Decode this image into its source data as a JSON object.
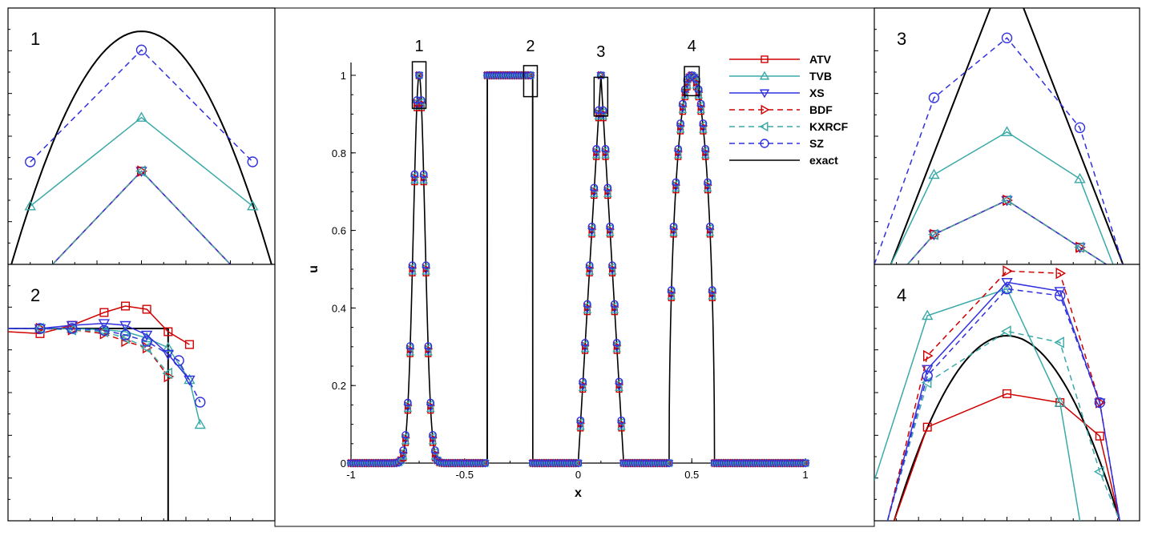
{
  "figure": {
    "panel_labels": [
      "1",
      "2",
      "3",
      "4"
    ],
    "box_labels": [
      "1",
      "2",
      "3",
      "4"
    ]
  },
  "chart_data": {
    "type": "line",
    "xlabel": "x",
    "ylabel": "u",
    "xlim": [
      -1,
      1
    ],
    "ylim": [
      0,
      1
    ],
    "x_ticks": [
      -1,
      -0.5,
      0,
      0.5,
      1
    ],
    "x_tick_labels": [
      "-1",
      "-0.5",
      "0",
      "0.5",
      "1"
    ],
    "y_ticks": [
      0,
      0.2,
      0.4,
      0.6,
      0.8,
      1
    ],
    "y_tick_labels": [
      "0",
      "0.2",
      "0.4",
      "0.6",
      "0.8",
      "1"
    ],
    "grid": false,
    "legend_position": "top-right",
    "zoom_regions": [
      {
        "label": "1",
        "x": [
          -0.73,
          -0.67
        ],
        "y": [
          0.92,
          1.04
        ]
      },
      {
        "label": "2",
        "x": [
          -0.24,
          -0.18
        ],
        "y": [
          0.96,
          1.04
        ]
      },
      {
        "label": "3",
        "x": [
          0.07,
          0.13
        ],
        "y": [
          0.91,
          0.98
        ]
      },
      {
        "label": "4",
        "x": [
          0.46,
          0.54
        ],
        "y": [
          0.96,
          1.03
        ]
      }
    ],
    "series": [
      {
        "name": "ATV",
        "color": "#d00000",
        "marker": "square",
        "dash": false
      },
      {
        "name": "TVB",
        "color": "#3aaaa8",
        "marker": "triangle-up",
        "dash": false
      },
      {
        "name": "XS",
        "color": "#3030e0",
        "marker": "triangle-down",
        "dash": false
      },
      {
        "name": "BDF",
        "color": "#d00000",
        "marker": "triangle-right",
        "dash": true
      },
      {
        "name": "KXRCF",
        "color": "#3aaaa8",
        "marker": "triangle-left",
        "dash": true
      },
      {
        "name": "SZ",
        "color": "#3030e0",
        "marker": "circle",
        "dash": true
      },
      {
        "name": "exact",
        "color": "#000000",
        "marker": "none",
        "dash": false
      }
    ],
    "exact_solution": "Gaussian pulse at x=-0.7, square wave on [-0.4,-0.2], triangle at x=0.1, semi-ellipse at x=0.5",
    "insets": [
      {
        "label": "1",
        "xlim": [
          -0.712,
          -0.688
        ],
        "ylim": [
          0.9,
          1.01
        ],
        "series": {
          "exact": {
            "x": [
              -0.712,
              -0.708,
              -0.704,
              -0.702,
              -0.7,
              -0.698,
              -0.696,
              -0.692,
              -0.688
            ],
            "y": [
              0.9,
              0.945,
              0.985,
              0.998,
              1.0,
              0.998,
              0.985,
              0.945,
              0.9
            ]
          },
          "SZ": {
            "x": [
              -0.71,
              -0.7,
              -0.69
            ],
            "y": [
              0.944,
              0.992,
              0.944
            ]
          },
          "TVB": {
            "x": [
              -0.71,
              -0.7,
              -0.69
            ],
            "y": [
              0.925,
              0.963,
              0.925
            ]
          },
          "ATV": {
            "x": [
              -0.708,
              -0.7,
              -0.692
            ],
            "y": [
              0.9,
              0.94,
              0.9
            ]
          },
          "XS": {
            "x": [
              -0.708,
              -0.7,
              -0.692
            ],
            "y": [
              0.9,
              0.94,
              0.9
            ]
          },
          "BDF": {
            "x": [
              -0.708,
              -0.7,
              -0.692
            ],
            "y": [
              0.9,
              0.94,
              0.9
            ]
          },
          "KXRCF": {
            "x": [
              -0.708,
              -0.7,
              -0.692
            ],
            "y": [
              0.9,
              0.94,
              0.9
            ]
          }
        }
      },
      {
        "label": "2",
        "xlim": [
          -0.215,
          -0.19
        ],
        "ylim": [
          0.97,
          1.01
        ],
        "series": {
          "exact": {
            "x": [
              -0.215,
              -0.2,
              -0.2
            ],
            "y": [
              1.0,
              1.0,
              0.97
            ]
          },
          "ATV": {
            "x": [
              -0.215,
              -0.212,
              -0.209,
              -0.206,
              -0.204,
              -0.202,
              -0.2,
              -0.198
            ],
            "y": [
              0.9995,
              0.9992,
              1.0005,
              1.0025,
              1.0035,
              1.003,
              0.9995,
              0.9975
            ]
          },
          "TVB": {
            "x": [
              -0.215,
              -0.212,
              -0.209,
              -0.206,
              -0.204,
              -0.202,
              -0.2,
              -0.198,
              -0.197
            ],
            "y": [
              1.0,
              1.0,
              1.0,
              0.9998,
              0.9995,
              0.9985,
              0.997,
              0.992,
              0.985
            ]
          },
          "XS": {
            "x": [
              -0.215,
              -0.212,
              -0.209,
              -0.206,
              -0.204,
              -0.202,
              -0.2,
              -0.198
            ],
            "y": [
              1.0,
              1.0,
              1.0005,
              1.0008,
              1.0005,
              0.999,
              0.996,
              0.992
            ]
          },
          "BDF": {
            "x": [
              -0.215,
              -0.212,
              -0.209,
              -0.206,
              -0.204,
              -0.202,
              -0.2
            ],
            "y": [
              1.0,
              1.0,
              0.9998,
              0.9992,
              0.998,
              0.997,
              0.9925
            ]
          },
          "KXRCF": {
            "x": [
              -0.215,
              -0.212,
              -0.209,
              -0.206,
              -0.204,
              -0.202,
              -0.2
            ],
            "y": [
              1.0,
              1.0,
              0.9998,
              0.9995,
              0.9985,
              0.997,
              0.993
            ]
          },
          "SZ": {
            "x": [
              -0.215,
              -0.212,
              -0.209,
              -0.206,
              -0.204,
              -0.202,
              -0.199,
              -0.197
            ],
            "y": [
              1.0,
              1.0,
              1.0,
              0.9997,
              0.999,
              0.998,
              0.995,
              0.9885
            ]
          }
        }
      },
      {
        "label": "3",
        "xlim": [
          0.096,
          0.104
        ],
        "ylim": [
          0.93,
          0.99
        ],
        "series": {
          "exact": {
            "x": [
              0.0965,
              0.1,
              0.1035
            ],
            "y": [
              0.93,
              1.0,
              0.93
            ]
          },
          "SZ": {
            "x": [
              0.096,
              0.0978,
              0.1,
              0.1022,
              0.1035
            ],
            "y": [
              0.93,
              0.969,
              0.983,
              0.962,
              0.93
            ]
          },
          "TVB": {
            "x": [
              0.0965,
              0.0978,
              0.1,
              0.1022,
              0.1032
            ],
            "y": [
              0.93,
              0.951,
              0.961,
              0.95,
              0.93
            ]
          },
          "ATV": {
            "x": [
              0.097,
              0.0978,
              0.1,
              0.1022,
              0.103
            ],
            "y": [
              0.93,
              0.937,
              0.945,
              0.934,
              0.93
            ]
          },
          "XS": {
            "x": [
              0.097,
              0.0978,
              0.1,
              0.1022,
              0.103
            ],
            "y": [
              0.93,
              0.937,
              0.945,
              0.934,
              0.93
            ]
          },
          "BDF": {
            "x": [
              0.097,
              0.0978,
              0.1,
              0.1022,
              0.103
            ],
            "y": [
              0.93,
              0.937,
              0.945,
              0.934,
              0.93
            ]
          },
          "KXRCF": {
            "x": [
              0.097,
              0.0978,
              0.1,
              0.1022,
              0.103
            ],
            "y": [
              0.93,
              0.937,
              0.945,
              0.934,
              0.93
            ]
          }
        }
      },
      {
        "label": "4",
        "xlim": [
          0.49,
          0.51
        ],
        "ylim": [
          0.99,
          1.0015
        ],
        "series": {
          "exact": {
            "x": [
              0.4915,
              0.494,
              0.4965,
              0.4985,
              0.5,
              0.5015,
              0.5035,
              0.506,
              0.5085
            ],
            "y": [
              0.99,
              0.9938,
              0.9968,
              0.9981,
              0.9983,
              0.998,
              0.9965,
              0.9935,
              0.99
            ]
          },
          "ATV": {
            "x": [
              0.4915,
              0.494,
              0.5,
              0.504,
              0.507,
              0.5085
            ],
            "y": [
              0.99,
              0.9942,
              0.9957,
              0.9953,
              0.9938,
              0.99
            ]
          },
          "TVB": {
            "x": [
              0.49,
              0.494,
              0.5,
              0.504,
              0.5055
            ],
            "y": [
              0.9918,
              0.9992,
              1.0004,
              0.9953,
              0.99
            ]
          },
          "XS": {
            "x": [
              0.491,
              0.494,
              0.5,
              0.504,
              0.507,
              0.5085
            ],
            "y": [
              0.99,
              0.9968,
              1.0007,
              1.0003,
              0.9953,
              0.99
            ]
          },
          "BDF": {
            "x": [
              0.491,
              0.494,
              0.5,
              0.504,
              0.507,
              0.5085
            ],
            "y": [
              0.99,
              0.9974,
              1.0012,
              1.0011,
              0.9953,
              0.99
            ]
          },
          "KXRCF": {
            "x": [
              0.491,
              0.494,
              0.5,
              0.504,
              0.507,
              0.5085
            ],
            "y": [
              0.99,
              0.9962,
              0.9985,
              0.998,
              0.9922,
              0.99
            ]
          },
          "SZ": {
            "x": [
              0.491,
              0.494,
              0.5,
              0.504,
              0.507,
              0.5085
            ],
            "y": [
              0.99,
              0.9965,
              1.0004,
              1.0001,
              0.9953,
              0.99
            ]
          }
        }
      }
    ]
  }
}
